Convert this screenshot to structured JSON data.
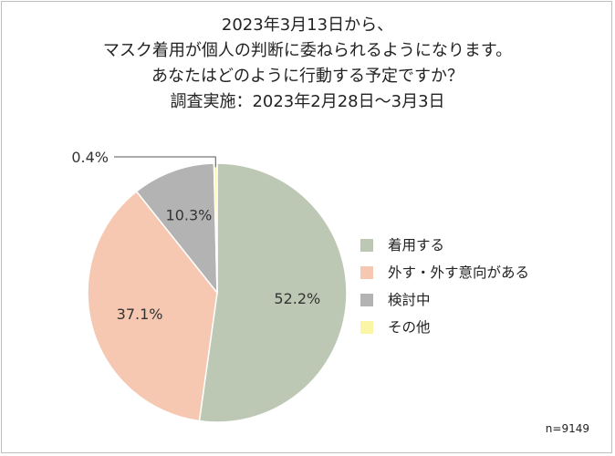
{
  "title_lines": [
    "2023年3月13日から、",
    "マスク着用が個人の判断に委ねられるようになります。",
    "あなたはどのように行動する予定ですか？",
    "調査実施：2023年2月28日～3月3日"
  ],
  "note": "n=9149",
  "chart_data": {
    "type": "pie",
    "title": "2023年3月13日から、マスク着用が個人の判断に委ねられるようになります。あなたはどのように行動する予定ですか？",
    "subtitle": "調査実施：2023年2月28日～3月3日",
    "slices": [
      {
        "label": "着用する",
        "value": 52.2,
        "display": "52.2%",
        "color": "#bdc8b4"
      },
      {
        "label": "外す・外す意向がある",
        "value": 37.1,
        "display": "37.1%",
        "color": "#f6c7b1"
      },
      {
        "label": "検討中",
        "value": 10.3,
        "display": "10.3%",
        "color": "#b3b3b3"
      },
      {
        "label": "その他",
        "value": 0.4,
        "display": "0.4%",
        "color": "#fbf6a6"
      }
    ],
    "start": "12 o'clock",
    "direction": "clockwise",
    "legend": "right",
    "sample_size": "n=9149"
  }
}
